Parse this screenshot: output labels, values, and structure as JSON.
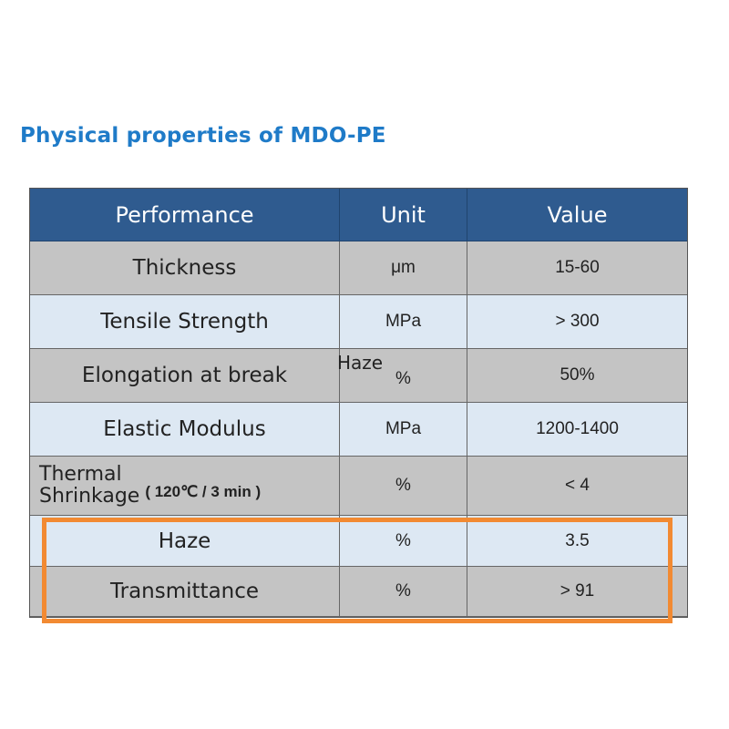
{
  "title": "Physical properties of MDO-PE",
  "header": {
    "performance": "Performance",
    "unit": "Unit",
    "value": "Value"
  },
  "rows": [
    {
      "performance": "Thickness",
      "unit": "μm",
      "value": "15-60"
    },
    {
      "performance": "Tensile Strength",
      "unit": "MPa",
      "value": "> 300"
    },
    {
      "performance": "Elongation at break",
      "unit": "%",
      "value": "50%"
    },
    {
      "performance": "Elastic Modulus",
      "unit": "MPa",
      "value": "1200-1400"
    },
    {
      "performance_line1": "Thermal",
      "performance_line2": "Shrinkage",
      "condition": "( 120℃ / 3 min )",
      "unit": "%",
      "value": "< 4"
    },
    {
      "performance": "Haze",
      "unit": "%",
      "value": "3.5"
    },
    {
      "performance": "Transmittance",
      "unit": "%",
      "value": "> 91"
    }
  ],
  "stray_label": "Haze",
  "highlight_color": "#f28a32"
}
